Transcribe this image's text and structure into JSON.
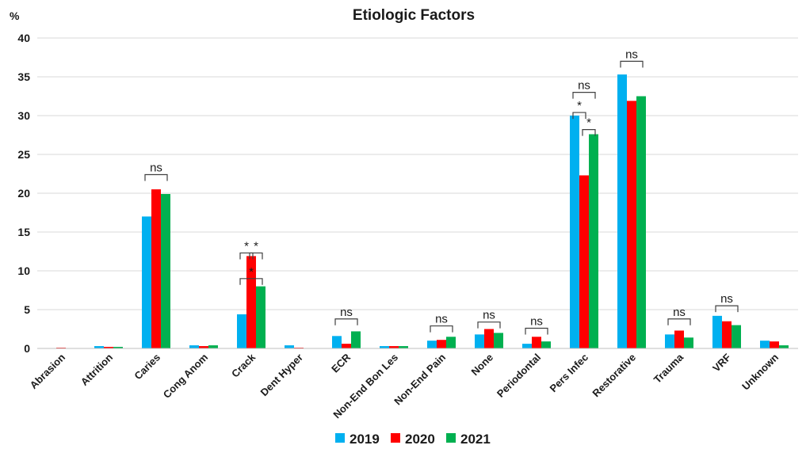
{
  "chart_data": {
    "type": "bar",
    "title": "Etiologic Factors",
    "ylabel": "%",
    "xlabel": "",
    "ylim": [
      0,
      40
    ],
    "yticks": [
      0,
      5,
      10,
      15,
      20,
      25,
      30,
      35,
      40
    ],
    "grid": true,
    "legend_position": "bottom",
    "categories": [
      "Abrasion",
      "Attrition",
      "Caries",
      "Cong Anom",
      "Crack",
      "Dent Hyper",
      "ECR",
      "Non-End Bon Les",
      "Non-End Pain",
      "None",
      "Periodontal",
      "Pers Infec",
      "Restorative",
      "Trauma",
      "VRF",
      "Unknown"
    ],
    "series": [
      {
        "name": "2019",
        "color": "#00B0F0",
        "values": [
          0,
          0.3,
          17.0,
          0.4,
          4.4,
          0.4,
          1.6,
          0.3,
          1.0,
          1.8,
          0.6,
          30.0,
          35.3,
          1.8,
          4.2,
          1.0
        ]
      },
      {
        "name": "2020",
        "color": "#FF0000",
        "values": [
          0.1,
          0.2,
          20.5,
          0.3,
          11.9,
          0.1,
          0.6,
          0.3,
          1.1,
          2.5,
          1.5,
          22.3,
          31.9,
          2.3,
          3.5,
          0.9
        ]
      },
      {
        "name": "2021",
        "color": "#00B050",
        "values": [
          0,
          0.2,
          19.9,
          0.4,
          8.0,
          0,
          2.2,
          0.3,
          1.5,
          2.0,
          0.9,
          27.6,
          32.5,
          1.4,
          3.0,
          0.4
        ]
      }
    ],
    "annotations": [
      {
        "label": "ns",
        "category": "Caries",
        "span": [
          0,
          2
        ],
        "y": 22.4
      },
      {
        "label": "*",
        "category": "Crack",
        "span": [
          0,
          1
        ],
        "y": 12.3
      },
      {
        "label": "*",
        "category": "Crack",
        "span": [
          1,
          2
        ],
        "y": 12.3
      },
      {
        "label": "*",
        "category": "Crack",
        "span": [
          0,
          2
        ],
        "y": 9.0
      },
      {
        "label": "ns",
        "category": "ECR",
        "span": [
          0,
          2
        ],
        "y": 3.8
      },
      {
        "label": "ns",
        "category": "Non-End Pain",
        "span": [
          0,
          2
        ],
        "y": 2.9
      },
      {
        "label": "ns",
        "category": "None",
        "span": [
          0,
          2
        ],
        "y": 3.4
      },
      {
        "label": "ns",
        "category": "Periodontal",
        "span": [
          0,
          2
        ],
        "y": 2.6
      },
      {
        "label": "ns",
        "category": "Pers Infec",
        "span": [
          0,
          2
        ],
        "y": 33.0
      },
      {
        "label": "*",
        "category": "Pers Infec",
        "span": [
          0,
          1
        ],
        "y": 30.4
      },
      {
        "label": "*",
        "category": "Pers Infec",
        "span": [
          1,
          2
        ],
        "y": 28.2
      },
      {
        "label": "ns",
        "category": "Restorative",
        "span": [
          0,
          2
        ],
        "y": 37.0
      },
      {
        "label": "ns",
        "category": "Trauma",
        "span": [
          0,
          2
        ],
        "y": 3.8
      },
      {
        "label": "ns",
        "category": "VRF",
        "span": [
          0,
          2
        ],
        "y": 5.5
      }
    ]
  }
}
